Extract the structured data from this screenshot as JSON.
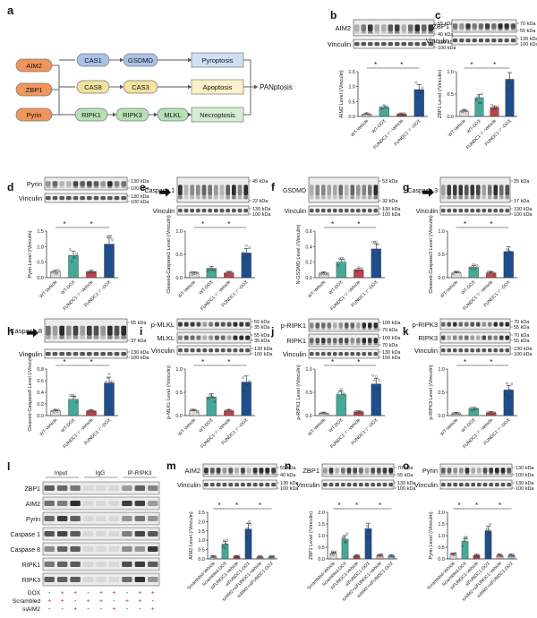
{
  "figure": {
    "panel_letters": {
      "a": "a",
      "b": "b",
      "c": "c",
      "d": "d",
      "e": "e",
      "f": "f",
      "g": "g",
      "h": "h",
      "i": "i",
      "j": "j",
      "k": "k",
      "l": "l",
      "m": "m",
      "n": "n",
      "o": "o"
    },
    "schematic": {
      "sensors": [
        "AIM2",
        "ZBP1",
        "Pyrin"
      ],
      "pyroptosis_chain": [
        "CAS1",
        "GSDMD"
      ],
      "apoptosis_chain": [
        "CAS8",
        "CAS3"
      ],
      "necroptosis_chain": [
        "RIPK1",
        "RIPK3",
        "MLKL"
      ],
      "outcomes": [
        "Pyroptosis",
        "Apoptosis",
        "Necroptosis"
      ],
      "final": "PANptosis",
      "colors": {
        "sensor": "#f0955b",
        "pyro": "#a9c3e8",
        "apo": "#f4e2a1",
        "necro": "#b7e0b4",
        "outcome_pyro": "#cfe0f5",
        "outcome_apo": "#fbf0c9",
        "outcome_necro": "#d3eed0"
      }
    },
    "group_labels_4": [
      "WT-Vehicle",
      "WT-DOX",
      "FUNDC1⁻/⁻-Vehicle",
      "FUNDC1⁻/⁻-DOX"
    ],
    "group_labels_6": [
      "Scrambled-Vehicle",
      "Scrambled-DOX",
      "siFUNDC1-Vehicle",
      "siFUNDC1-DOX",
      "siAIM2+siFUNDC1-Vehicle",
      "siAIM2+siFUNDC1-DOX"
    ],
    "bar_colors_4": [
      "#d9d9d9",
      "#45a89a",
      "#c0424a",
      "#1f4e8c"
    ],
    "bar_colors_6": [
      "#d9d9d9",
      "#45a89a",
      "#c0424a",
      "#1f4e8c",
      "#e7a0a4",
      "#8fb7d9"
    ],
    "sig_marker": "*",
    "blots": {
      "b": {
        "bands": [
          {
            "name": "AIM2",
            "kda": [
              "55 kDa",
              "40 kDa"
            ]
          },
          {
            "name": "Vinculin",
            "kda": [
              "130 kDa",
              "100 kDa"
            ]
          }
        ]
      },
      "c": {
        "bands": [
          {
            "name": "ZBP1",
            "kda": [
              "70 kDa",
              "55 kDa"
            ]
          },
          {
            "name": "Vinculin",
            "kda": [
              "130 kDa",
              "100 kDa"
            ]
          }
        ]
      },
      "d": {
        "bands": [
          {
            "name": "Pyrin",
            "kda": [
              "130 kDa",
              "100 kDa"
            ]
          },
          {
            "name": "Vinculin",
            "kda": [
              "130 kDa",
              "100 kDa"
            ]
          }
        ]
      },
      "e": {
        "bands": [
          {
            "name": "Caspase 1",
            "kda": [
              "45 kDa",
              "22 kDa"
            ]
          },
          {
            "name": "Vinculin",
            "kda": [
              "130 kDa",
              "100 kDa"
            ]
          }
        ]
      },
      "f": {
        "bands": [
          {
            "name": "GSDMD",
            "kda": [
              "53 kDa",
              "32 kDa"
            ]
          },
          {
            "name": "Vinculin",
            "kda": [
              "130 kDa",
              "100 kDa"
            ]
          }
        ]
      },
      "g": {
        "bands": [
          {
            "name": "Caspase 3",
            "kda": [
              "35 kDa",
              "17 kDa"
            ]
          },
          {
            "name": "Vinculin",
            "kda": [
              "130 kDa",
              "100 kDa"
            ]
          }
        ]
      },
      "h": {
        "bands": [
          {
            "name": "Caspase 8",
            "kda": [
              "55 kDa",
              "37 kDa"
            ]
          },
          {
            "name": "Vinculin",
            "kda": [
              "130 kDa",
              "100 kDa"
            ]
          }
        ]
      },
      "i": {
        "bands": [
          {
            "name": "p-MLKL",
            "kda": [
              "55 kDa",
              "35 kDa"
            ]
          },
          {
            "name": "MLKL",
            "kda": [
              "55 kDa",
              "35 kDa"
            ]
          },
          {
            "name": "Vinculin",
            "kda": [
              "130 kDa",
              "100 kDa"
            ]
          }
        ]
      },
      "j": {
        "bands": [
          {
            "name": "p-RIPK1",
            "kda": [
              "100 kDa",
              "70 kDa"
            ]
          },
          {
            "name": "RIPK1",
            "kda": [
              "100 kDa",
              "70 kDa"
            ]
          },
          {
            "name": "Vinculin",
            "kda": [
              "130 kDa",
              "100 kDa"
            ]
          }
        ]
      },
      "k": {
        "bands": [
          {
            "name": "p-RIPK3",
            "kda": [
              "70 kDa",
              "55 kDa"
            ]
          },
          {
            "name": "RIPK3",
            "kda": [
              "70 kDa",
              "55 kDa"
            ]
          },
          {
            "name": "Vinculin",
            "kda": [
              "130 kDa",
              "100 kDa"
            ]
          }
        ]
      },
      "m": {
        "bands": [
          {
            "name": "AIM2",
            "kda": [
              "55 kDa",
              "40 kDa"
            ]
          },
          {
            "name": "Vinculin",
            "kda": [
              "130 kDa",
              "100 kDa"
            ]
          }
        ]
      },
      "n": {
        "bands": [
          {
            "name": "ZBP1",
            "kda": [
              "70 kDa",
              "55 kDa"
            ]
          },
          {
            "name": "Vinculin",
            "kda": [
              "130 kDa",
              "100 kDa"
            ]
          }
        ]
      },
      "o": {
        "bands": [
          {
            "name": "Pyrin",
            "kda": [
              "130 kDa",
              "100 kDa"
            ]
          },
          {
            "name": "Vinculin",
            "kda": [
              "130 kDa",
              "100 kDa"
            ]
          }
        ]
      }
    },
    "coip": {
      "headers": [
        "Input",
        "IgG",
        "IP-RIPK3"
      ],
      "rows": [
        "ZBP1",
        "AIM2",
        "Pyrin",
        "Caspase 1",
        "Caspase 8",
        "RIPK1",
        "RIPK3"
      ],
      "conditions": [
        {
          "name": "DOX",
          "marks": [
            "-",
            "+",
            "+",
            "-",
            "+",
            "+",
            "-",
            "+",
            "+"
          ]
        },
        {
          "name": "Scrambled",
          "marks": [
            "+",
            "+",
            "-",
            "+",
            "+",
            "-",
            "+",
            "+",
            "-"
          ]
        },
        {
          "name": "siAIM2",
          "marks": [
            "-",
            "-",
            "+",
            "-",
            "-",
            "+",
            "-",
            "-",
            "+"
          ]
        }
      ]
    }
  },
  "chart_data": [
    {
      "panel": "b",
      "type": "bar",
      "ylabel": "AIM2 Level (/Vinculin)",
      "ylim": [
        0,
        1.5
      ],
      "yticks": [
        "0.0",
        "0.5",
        "1.0",
        "1.5"
      ],
      "values": [
        0.08,
        0.3,
        0.08,
        0.9
      ],
      "sig": [
        [
          1,
          2
        ],
        [
          2,
          4
        ]
      ]
    },
    {
      "panel": "c",
      "type": "bar",
      "ylabel": "ZBP1 Level (/Vinculin)",
      "ylim": [
        0,
        1.0
      ],
      "yticks": [
        "0.0",
        "0.5",
        "1.0"
      ],
      "values": [
        0.12,
        0.42,
        0.2,
        0.83
      ],
      "sig": [
        [
          1,
          2
        ],
        [
          2,
          4
        ]
      ]
    },
    {
      "panel": "d",
      "type": "bar",
      "ylabel": "Pyrin Level (/Vinculin)",
      "ylim": [
        0,
        1.5
      ],
      "yticks": [
        "0.0",
        "0.5",
        "1.0",
        "1.5"
      ],
      "values": [
        0.2,
        0.72,
        0.2,
        1.08
      ],
      "sig": [
        [
          1,
          2
        ],
        [
          2,
          4
        ]
      ]
    },
    {
      "panel": "e",
      "type": "bar",
      "ylabel": "Cleaved-Caspase1 Level (/Vinculin)",
      "ylim": [
        0,
        1.0
      ],
      "yticks": [
        "0.0",
        "0.5",
        "1.0"
      ],
      "values": [
        0.1,
        0.2,
        0.1,
        0.53
      ],
      "sig": [
        [
          1,
          2
        ],
        [
          2,
          4
        ]
      ]
    },
    {
      "panel": "f",
      "type": "bar",
      "ylabel": "N-GSDMD Level (/Vinculin)",
      "ylim": [
        0,
        0.6
      ],
      "yticks": [
        "0.0",
        "0.2",
        "0.4",
        "0.6"
      ],
      "values": [
        0.06,
        0.2,
        0.1,
        0.37
      ],
      "sig": [
        [
          1,
          2
        ],
        [
          2,
          4
        ]
      ]
    },
    {
      "panel": "g",
      "type": "bar",
      "ylabel": "Cleaved-Caspase3 Level (/Vinculin)",
      "ylim": [
        0,
        1.0
      ],
      "yticks": [
        "0.0",
        "0.5",
        "1.0"
      ],
      "values": [
        0.1,
        0.22,
        0.1,
        0.56
      ],
      "sig": [
        [
          1,
          2
        ],
        [
          2,
          4
        ]
      ]
    },
    {
      "panel": "h",
      "type": "bar",
      "ylabel": "Cleaved-Caspase8 Level (/Vinculin)",
      "ylim": [
        0,
        0.8
      ],
      "yticks": [
        "0.0",
        "0.2",
        "0.4",
        "0.6",
        "0.8"
      ],
      "values": [
        0.08,
        0.28,
        0.08,
        0.56
      ],
      "sig": [
        [
          1,
          2
        ],
        [
          2,
          4
        ]
      ]
    },
    {
      "panel": "i",
      "type": "bar",
      "ylabel": "p-MLKL Level (/Vinculin)",
      "ylim": [
        0,
        1.0
      ],
      "yticks": [
        "0.0",
        "0.5",
        "1.0"
      ],
      "values": [
        0.1,
        0.4,
        0.1,
        0.72
      ],
      "sig": [
        [
          1,
          2
        ],
        [
          2,
          4
        ]
      ]
    },
    {
      "panel": "j",
      "type": "bar",
      "ylabel": "p-RIPK1 Level (/Vinculin)",
      "ylim": [
        0,
        1.0
      ],
      "yticks": [
        "0.0",
        "0.5",
        "1.0"
      ],
      "values": [
        0.05,
        0.45,
        0.08,
        0.68
      ],
      "sig": [
        [
          1,
          2
        ],
        [
          2,
          4
        ]
      ]
    },
    {
      "panel": "k",
      "type": "bar",
      "ylabel": "p-RIPK3 Level (/Vinculin)",
      "ylim": [
        0,
        1.0
      ],
      "yticks": [
        "0.0",
        "0.5",
        "1.0"
      ],
      "values": [
        0.04,
        0.15,
        0.06,
        0.55
      ],
      "sig": [
        [
          1,
          2
        ],
        [
          2,
          4
        ]
      ]
    },
    {
      "panel": "m",
      "type": "bar6",
      "ylabel": "AIM2 Level (/Vinculin)",
      "ylim": [
        0,
        2.5
      ],
      "yticks": [
        "0.0",
        "0.5",
        "1.0",
        "1.5",
        "2.0",
        "2.5"
      ],
      "values": [
        0.1,
        0.8,
        0.12,
        1.6,
        0.1,
        0.1
      ],
      "sig": [
        [
          1,
          2
        ],
        [
          2,
          4
        ],
        [
          4,
          6
        ]
      ]
    },
    {
      "panel": "n",
      "type": "bar6",
      "ylabel": "ZBP1 Level (/Vinculin)",
      "ylim": [
        0,
        2.0
      ],
      "yticks": [
        "0.0",
        "0.5",
        "1.0",
        "1.5",
        "2.0"
      ],
      "values": [
        0.25,
        0.85,
        0.12,
        1.3,
        0.15,
        0.12
      ],
      "sig": [
        [
          1,
          2
        ],
        [
          2,
          4
        ],
        [
          4,
          6
        ]
      ]
    },
    {
      "panel": "o",
      "type": "bar6",
      "ylabel": "Pyrin Level (/Vinculin)",
      "ylim": [
        0,
        2.0
      ],
      "yticks": [
        "0.0",
        "0.5",
        "1.0",
        "1.5",
        "2.0"
      ],
      "values": [
        0.2,
        0.75,
        0.15,
        1.2,
        0.15,
        0.15
      ],
      "sig": [
        [
          1,
          2
        ],
        [
          2,
          4
        ],
        [
          4,
          6
        ]
      ]
    }
  ]
}
